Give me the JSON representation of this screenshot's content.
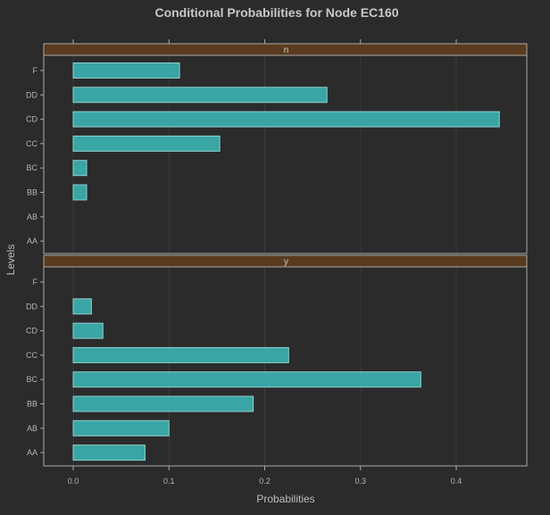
{
  "chart_data": {
    "type": "bar",
    "orientation": "horizontal",
    "title": "Conditional Probabilities for Node EC160",
    "xlabel": "Probabilities",
    "ylabel": "Levels",
    "xlim": [
      -0.03,
      0.475
    ],
    "xticks": [
      0.0,
      0.1,
      0.2,
      0.3,
      0.4
    ],
    "xtick_labels": [
      "0.0",
      "0.1",
      "0.2",
      "0.3",
      "0.4"
    ],
    "grid": true,
    "colors": {
      "background": "#2b2b2b",
      "bar_fill": "#3aa5a5",
      "bar_stroke": "#8fd0cf",
      "strip_fill": "#5a3b1f",
      "panel_border": "#a8a8a8",
      "grid": "#3a3a3a"
    },
    "panels": [
      {
        "strip": "n",
        "categories": [
          "F",
          "DD",
          "CD",
          "CC",
          "BC",
          "BB",
          "AB",
          "AA"
        ],
        "values": [
          0.111,
          0.265,
          0.445,
          0.153,
          0.014,
          0.014,
          0.0,
          0.0
        ]
      },
      {
        "strip": "y",
        "categories": [
          "F",
          "DD",
          "CD",
          "CC",
          "BC",
          "BB",
          "AB",
          "AA"
        ],
        "values": [
          0.0,
          0.019,
          0.031,
          0.225,
          0.363,
          0.188,
          0.1,
          0.075
        ]
      }
    ]
  }
}
